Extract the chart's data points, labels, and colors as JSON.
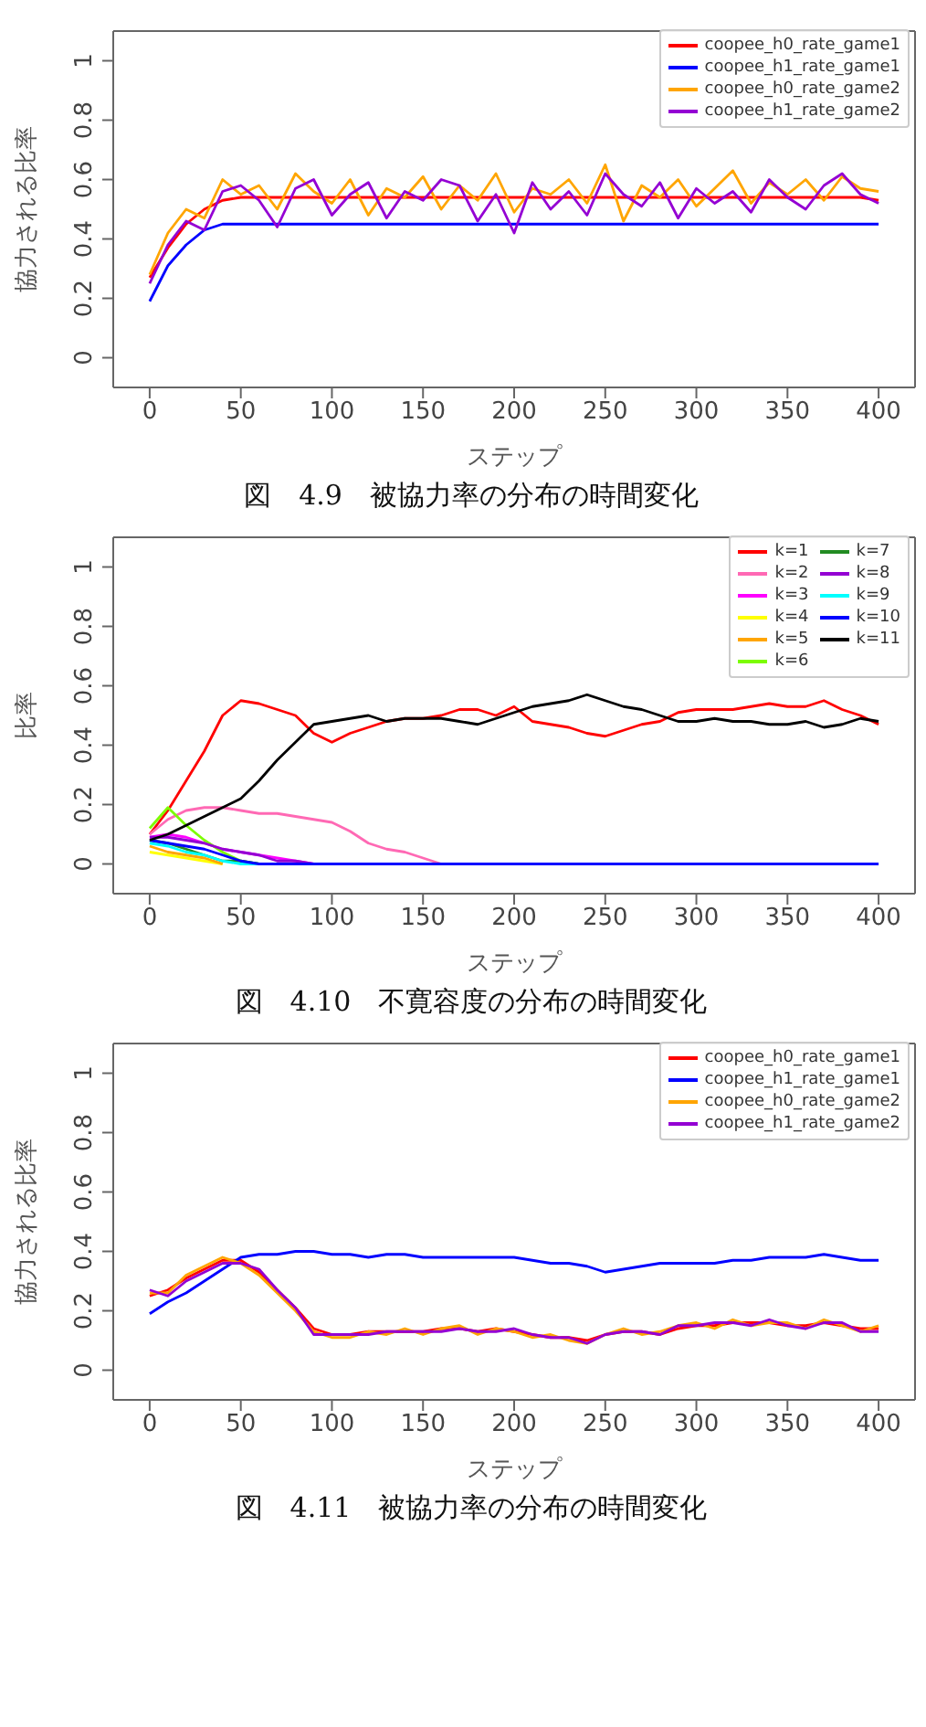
{
  "chart_data": [
    {
      "type": "line",
      "title": "図　4.9　被協力率の分布の時間変化",
      "xlabel": "ステップ",
      "ylabel": "協力される比率",
      "legend": "top right",
      "marker": "none",
      "xlim": [
        -20,
        420
      ],
      "xticks": [
        0,
        50,
        100,
        150,
        200,
        250,
        300,
        350,
        400
      ],
      "ylim": [
        -0.1,
        1.1
      ],
      "yticks": [
        0.0,
        0.2,
        0.4,
        0.6,
        0.8,
        1.0
      ],
      "x": [
        0,
        10,
        20,
        30,
        40,
        50,
        60,
        70,
        80,
        90,
        100,
        110,
        120,
        130,
        140,
        150,
        160,
        170,
        180,
        190,
        200,
        210,
        220,
        230,
        240,
        250,
        260,
        270,
        280,
        290,
        300,
        310,
        320,
        330,
        340,
        350,
        360,
        370,
        380,
        390,
        400
      ],
      "series": [
        {
          "name": "coopee_h0_rate_game1",
          "color": "#ff0000",
          "values": [
            0.27,
            0.37,
            0.45,
            0.5,
            0.53,
            0.54,
            0.54,
            0.54,
            0.54,
            0.54,
            0.54,
            0.54,
            0.54,
            0.54,
            0.54,
            0.54,
            0.54,
            0.54,
            0.54,
            0.54,
            0.54,
            0.54,
            0.54,
            0.54,
            0.54,
            0.54,
            0.54,
            0.54,
            0.54,
            0.54,
            0.54,
            0.54,
            0.54,
            0.54,
            0.54,
            0.54,
            0.54,
            0.54,
            0.54,
            0.54,
            0.53
          ]
        },
        {
          "name": "coopee_h1_rate_game1",
          "color": "#0000ff",
          "values": [
            0.19,
            0.31,
            0.38,
            0.43,
            0.45,
            0.45,
            0.45,
            0.45,
            0.45,
            0.45,
            0.45,
            0.45,
            0.45,
            0.45,
            0.45,
            0.45,
            0.45,
            0.45,
            0.45,
            0.45,
            0.45,
            0.45,
            0.45,
            0.45,
            0.45,
            0.45,
            0.45,
            0.45,
            0.45,
            0.45,
            0.45,
            0.45,
            0.45,
            0.45,
            0.45,
            0.45,
            0.45,
            0.45,
            0.45,
            0.45,
            0.45
          ]
        },
        {
          "name": "coopee_h0_rate_game2",
          "color": "#ffa500",
          "values": [
            0.28,
            0.42,
            0.5,
            0.47,
            0.6,
            0.55,
            0.58,
            0.5,
            0.62,
            0.56,
            0.52,
            0.6,
            0.48,
            0.57,
            0.54,
            0.61,
            0.5,
            0.58,
            0.53,
            0.62,
            0.49,
            0.57,
            0.55,
            0.6,
            0.52,
            0.65,
            0.46,
            0.58,
            0.54,
            0.6,
            0.51,
            0.57,
            0.63,
            0.52,
            0.59,
            0.55,
            0.6,
            0.53,
            0.61,
            0.57,
            0.56
          ]
        },
        {
          "name": "coopee_h1_rate_game2",
          "color": "#9400d3",
          "values": [
            0.25,
            0.38,
            0.46,
            0.43,
            0.56,
            0.58,
            0.53,
            0.44,
            0.57,
            0.6,
            0.48,
            0.55,
            0.59,
            0.47,
            0.56,
            0.53,
            0.6,
            0.58,
            0.46,
            0.55,
            0.42,
            0.59,
            0.5,
            0.56,
            0.48,
            0.62,
            0.55,
            0.51,
            0.59,
            0.47,
            0.57,
            0.52,
            0.56,
            0.49,
            0.6,
            0.54,
            0.5,
            0.58,
            0.62,
            0.55,
            0.52
          ]
        }
      ]
    },
    {
      "type": "line",
      "title": "図　4.10　不寛容度の分布の時間変化",
      "xlabel": "ステップ",
      "ylabel": "比率",
      "legend": "top right",
      "marker": "none",
      "xlim": [
        -20,
        420
      ],
      "xticks": [
        0,
        50,
        100,
        150,
        200,
        250,
        300,
        350,
        400
      ],
      "ylim": [
        -0.1,
        1.1
      ],
      "yticks": [
        0.0,
        0.2,
        0.4,
        0.6,
        0.8,
        1.0
      ],
      "x": [
        0,
        10,
        20,
        30,
        40,
        50,
        60,
        70,
        80,
        90,
        100,
        110,
        120,
        130,
        140,
        150,
        160,
        170,
        180,
        190,
        200,
        210,
        220,
        230,
        240,
        250,
        260,
        270,
        280,
        290,
        300,
        310,
        320,
        330,
        340,
        350,
        360,
        370,
        380,
        390,
        400
      ],
      "series": [
        {
          "name": "k=1",
          "color": "#ff0000",
          "values": [
            0.1,
            0.18,
            0.28,
            0.38,
            0.5,
            0.55,
            0.54,
            0.52,
            0.5,
            0.44,
            0.41,
            0.44,
            0.46,
            0.48,
            0.49,
            0.49,
            0.5,
            0.52,
            0.52,
            0.5,
            0.53,
            0.48,
            0.47,
            0.46,
            0.44,
            0.43,
            0.45,
            0.47,
            0.48,
            0.51,
            0.52,
            0.52,
            0.52,
            0.53,
            0.54,
            0.53,
            0.53,
            0.55,
            0.52,
            0.5,
            0.47
          ]
        },
        {
          "name": "k=2",
          "color": "#ff69b4",
          "x": [
            0,
            10,
            20,
            30,
            40,
            50,
            60,
            70,
            80,
            90,
            100,
            110,
            120,
            130,
            140,
            150,
            160
          ],
          "values": [
            0.1,
            0.15,
            0.18,
            0.19,
            0.19,
            0.18,
            0.17,
            0.17,
            0.16,
            0.15,
            0.14,
            0.11,
            0.07,
            0.05,
            0.04,
            0.02,
            0.0
          ]
        },
        {
          "name": "k=3",
          "color": "#ff00ff",
          "x": [
            0,
            10,
            20,
            30,
            40,
            50,
            60,
            70,
            80,
            90
          ],
          "values": [
            0.09,
            0.1,
            0.09,
            0.07,
            0.05,
            0.04,
            0.03,
            0.02,
            0.01,
            0.0
          ]
        },
        {
          "name": "k=4",
          "color": "#ffff00",
          "x": [
            0,
            10,
            20,
            30,
            40
          ],
          "values": [
            0.04,
            0.03,
            0.02,
            0.01,
            0.0
          ]
        },
        {
          "name": "k=5",
          "color": "#ffa500",
          "x": [
            0,
            10,
            20,
            30,
            40
          ],
          "values": [
            0.06,
            0.04,
            0.03,
            0.02,
            0.0
          ]
        },
        {
          "name": "k=6",
          "color": "#7cfc00",
          "x": [
            0,
            10,
            20,
            30,
            40,
            50,
            60
          ],
          "values": [
            0.12,
            0.19,
            0.13,
            0.08,
            0.04,
            0.01,
            0.0
          ]
        },
        {
          "name": "k=7",
          "color": "#228b22",
          "x": [
            0,
            10,
            20,
            30,
            40,
            50,
            60
          ],
          "values": [
            0.08,
            0.07,
            0.05,
            0.03,
            0.01,
            0.01,
            0.0
          ]
        },
        {
          "name": "k=8",
          "color": "#9400d3",
          "x": [
            0,
            10,
            20,
            30,
            40,
            50,
            60,
            70,
            80,
            90
          ],
          "values": [
            0.09,
            0.09,
            0.08,
            0.07,
            0.05,
            0.04,
            0.03,
            0.01,
            0.01,
            0.0
          ]
        },
        {
          "name": "k=9",
          "color": "#00ffff",
          "x": [
            0,
            10,
            20,
            30,
            40,
            50,
            60
          ],
          "values": [
            0.07,
            0.06,
            0.04,
            0.03,
            0.01,
            0.0,
            0.0
          ]
        },
        {
          "name": "k=10",
          "color": "#0000ff",
          "values": [
            0.08,
            0.07,
            0.06,
            0.05,
            0.03,
            0.01,
            0.0,
            0.0,
            0.0,
            0.0,
            0.0,
            0.0,
            0.0,
            0.0,
            0.0,
            0.0,
            0.0,
            0.0,
            0.0,
            0.0,
            0.0,
            0.0,
            0.0,
            0.0,
            0.0,
            0.0,
            0.0,
            0.0,
            0.0,
            0.0,
            0.0,
            0.0,
            0.0,
            0.0,
            0.0,
            0.0,
            0.0,
            0.0,
            0.0,
            0.0,
            0.0
          ]
        },
        {
          "name": "k=11",
          "color": "#000000",
          "values": [
            0.08,
            0.1,
            0.13,
            0.16,
            0.19,
            0.22,
            0.28,
            0.35,
            0.41,
            0.47,
            0.48,
            0.49,
            0.5,
            0.48,
            0.49,
            0.49,
            0.49,
            0.48,
            0.47,
            0.49,
            0.51,
            0.53,
            0.54,
            0.55,
            0.57,
            0.55,
            0.53,
            0.52,
            0.5,
            0.48,
            0.48,
            0.49,
            0.48,
            0.48,
            0.47,
            0.47,
            0.48,
            0.46,
            0.47,
            0.49,
            0.48
          ]
        }
      ]
    },
    {
      "type": "line",
      "title": "図　4.11　被協力率の分布の時間変化",
      "xlabel": "ステップ",
      "ylabel": "協力される比率",
      "legend": "top right",
      "marker": "none",
      "xlim": [
        -20,
        420
      ],
      "xticks": [
        0,
        50,
        100,
        150,
        200,
        250,
        300,
        350,
        400
      ],
      "ylim": [
        -0.1,
        1.1
      ],
      "yticks": [
        0.0,
        0.2,
        0.4,
        0.6,
        0.8,
        1.0
      ],
      "x": [
        0,
        10,
        20,
        30,
        40,
        50,
        60,
        70,
        80,
        90,
        100,
        110,
        120,
        130,
        140,
        150,
        160,
        170,
        180,
        190,
        200,
        210,
        220,
        230,
        240,
        250,
        260,
        270,
        280,
        290,
        300,
        310,
        320,
        330,
        340,
        350,
        360,
        370,
        380,
        390,
        400
      ],
      "series": [
        {
          "name": "coopee_h0_rate_game1",
          "color": "#ff0000",
          "values": [
            0.25,
            0.27,
            0.31,
            0.34,
            0.37,
            0.37,
            0.33,
            0.27,
            0.21,
            0.14,
            0.12,
            0.12,
            0.13,
            0.13,
            0.13,
            0.13,
            0.14,
            0.14,
            0.13,
            0.14,
            0.13,
            0.12,
            0.11,
            0.11,
            0.1,
            0.12,
            0.13,
            0.13,
            0.12,
            0.14,
            0.15,
            0.15,
            0.16,
            0.16,
            0.16,
            0.15,
            0.15,
            0.16,
            0.15,
            0.14,
            0.14
          ]
        },
        {
          "name": "coopee_h1_rate_game1",
          "color": "#0000ff",
          "values": [
            0.19,
            0.23,
            0.26,
            0.3,
            0.34,
            0.38,
            0.39,
            0.39,
            0.4,
            0.4,
            0.39,
            0.39,
            0.38,
            0.39,
            0.39,
            0.38,
            0.38,
            0.38,
            0.38,
            0.38,
            0.38,
            0.37,
            0.36,
            0.36,
            0.35,
            0.33,
            0.34,
            0.35,
            0.36,
            0.36,
            0.36,
            0.36,
            0.37,
            0.37,
            0.38,
            0.38,
            0.38,
            0.39,
            0.38,
            0.37,
            0.37
          ]
        },
        {
          "name": "coopee_h0_rate_game2",
          "color": "#ffa500",
          "values": [
            0.26,
            0.26,
            0.32,
            0.35,
            0.38,
            0.36,
            0.32,
            0.26,
            0.2,
            0.13,
            0.11,
            0.11,
            0.13,
            0.12,
            0.14,
            0.12,
            0.14,
            0.15,
            0.12,
            0.14,
            0.13,
            0.11,
            0.12,
            0.1,
            0.09,
            0.12,
            0.14,
            0.12,
            0.13,
            0.15,
            0.16,
            0.14,
            0.17,
            0.15,
            0.16,
            0.16,
            0.14,
            0.17,
            0.15,
            0.13,
            0.15
          ]
        },
        {
          "name": "coopee_h1_rate_game2",
          "color": "#9400d3",
          "values": [
            0.27,
            0.25,
            0.3,
            0.33,
            0.36,
            0.36,
            0.34,
            0.27,
            0.21,
            0.12,
            0.12,
            0.12,
            0.12,
            0.13,
            0.13,
            0.13,
            0.13,
            0.14,
            0.13,
            0.13,
            0.14,
            0.12,
            0.11,
            0.11,
            0.09,
            0.12,
            0.13,
            0.13,
            0.12,
            0.15,
            0.15,
            0.16,
            0.16,
            0.15,
            0.17,
            0.15,
            0.14,
            0.16,
            0.16,
            0.13,
            0.13
          ]
        }
      ]
    }
  ]
}
